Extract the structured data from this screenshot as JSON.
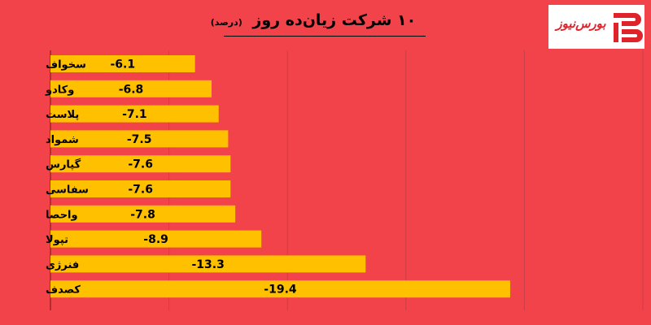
{
  "header": {
    "title": "۱۰ شرکت زیان‌ده روز",
    "subtitle": "(درصد)"
  },
  "logo": {
    "text": "بورس‌نیوز",
    "icon": "bourse-news-logo-icon"
  },
  "colors": {
    "background": "#f2424a",
    "bar": "#ffc000",
    "text": "#000000",
    "logo_red": "#e0222b"
  },
  "chart_data": {
    "type": "bar",
    "orientation": "horizontal",
    "categories": [
      "سخواف",
      "وکادو",
      "پلاست",
      "شمواد",
      "گپارس",
      "سفاسی",
      "واحصا",
      "تپولا",
      "فنرژی",
      "کصدف"
    ],
    "values": [
      -6.1,
      -6.8,
      -7.1,
      -7.5,
      -7.6,
      -7.6,
      -7.8,
      -8.9,
      -13.3,
      -19.4
    ],
    "data_labels": [
      "-6.1",
      "-6.8",
      "-7.1",
      "-7.5",
      "-7.6",
      "-7.6",
      "-7.8",
      "-8.9",
      "-13.3",
      "-19.4"
    ],
    "title": "۱۰ شرکت زیان‌ده روز",
    "unit": "(درصد)",
    "xlim": [
      0,
      -25
    ],
    "grid": true,
    "legend": "none"
  }
}
